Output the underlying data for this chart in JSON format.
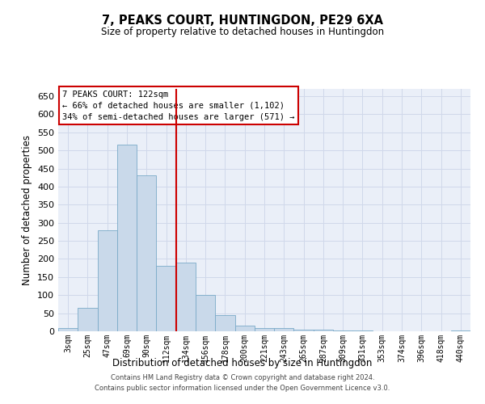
{
  "title1": "7, PEAKS COURT, HUNTINGDON, PE29 6XA",
  "title2": "Size of property relative to detached houses in Huntingdon",
  "xlabel": "Distribution of detached houses by size in Huntingdon",
  "ylabel": "Number of detached properties",
  "footer1": "Contains HM Land Registry data © Crown copyright and database right 2024.",
  "footer2": "Contains public sector information licensed under the Open Government Licence v3.0.",
  "annotation_title": "7 PEAKS COURT: 122sqm",
  "annotation_line1": "← 66% of detached houses are smaller (1,102)",
  "annotation_line2": "34% of semi-detached houses are larger (571) →",
  "bar_color": "#c9d9ea",
  "bar_edge_color": "#7aaac8",
  "vline_color": "#cc0000",
  "annotation_box_color": "#ffffff",
  "annotation_box_edge": "#cc0000",
  "categories": [
    "3sqm",
    "25sqm",
    "47sqm",
    "69sqm",
    "90sqm",
    "112sqm",
    "134sqm",
    "156sqm",
    "178sqm",
    "200sqm",
    "221sqm",
    "243sqm",
    "265sqm",
    "287sqm",
    "309sqm",
    "331sqm",
    "353sqm",
    "374sqm",
    "396sqm",
    "418sqm",
    "440sqm"
  ],
  "values": [
    10,
    65,
    280,
    515,
    430,
    180,
    190,
    100,
    45,
    15,
    10,
    10,
    5,
    5,
    3,
    3,
    1,
    1,
    0,
    0,
    2
  ],
  "ylim": [
    0,
    670
  ],
  "yticks": [
    0,
    50,
    100,
    150,
    200,
    250,
    300,
    350,
    400,
    450,
    500,
    550,
    600,
    650
  ],
  "grid_color": "#d0d8ea",
  "bg_color": "#eaeff8",
  "vline_x_index": 5.5,
  "fig_width": 6.0,
  "fig_height": 5.0,
  "dpi": 100
}
